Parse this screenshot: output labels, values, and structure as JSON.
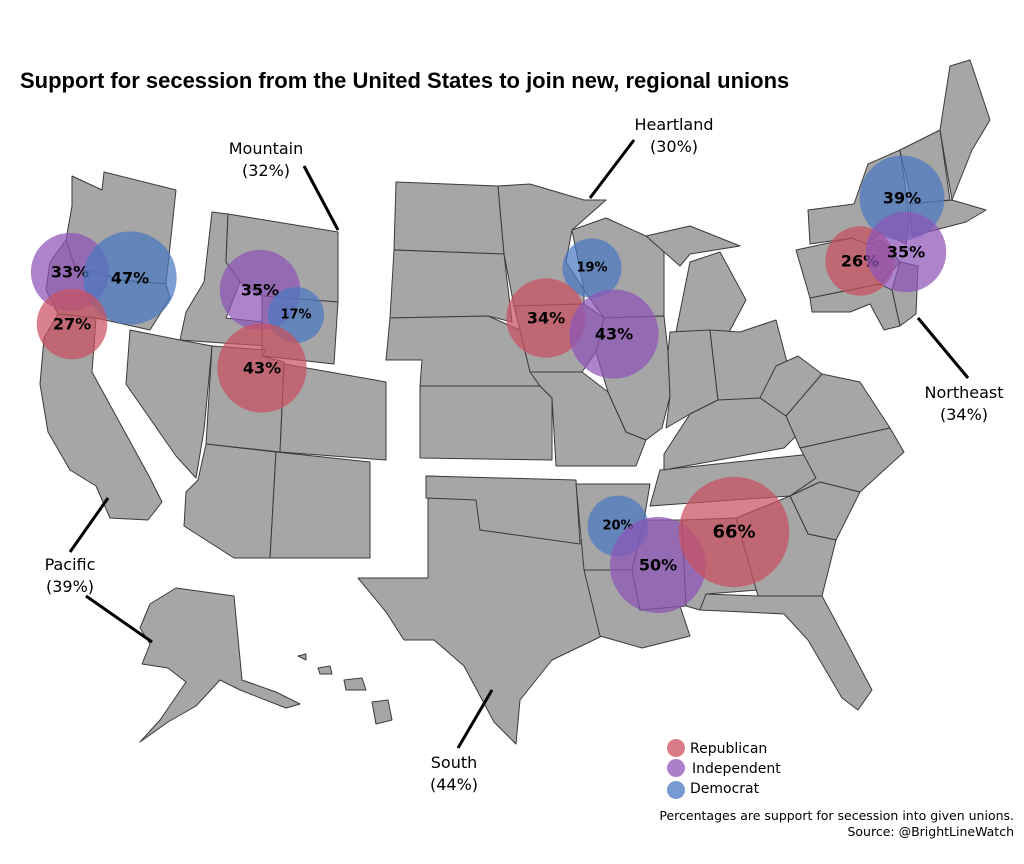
{
  "title": "Support for secession from the United States to join new, regional unions",
  "regions": [
    {
      "key": "pacific",
      "name": "Pacific",
      "overall": "(39%)"
    },
    {
      "key": "mountain",
      "name": "Mountain",
      "overall": "(32%)"
    },
    {
      "key": "heartland",
      "name": "Heartland",
      "overall": "(30%)"
    },
    {
      "key": "northeast",
      "name": "Northeast",
      "overall": "(34%)"
    },
    {
      "key": "south",
      "name": "South",
      "overall": "(44%)"
    }
  ],
  "parties": {
    "republican": {
      "label": "Republican",
      "color": "#c9505f"
    },
    "independent": {
      "label": "Independent",
      "color": "#8e55b8"
    },
    "democrat": {
      "label": "Democrat",
      "color": "#4a78c0"
    }
  },
  "support": [
    {
      "region": "pacific",
      "party": "independent",
      "value": 33,
      "text": "33%"
    },
    {
      "region": "pacific",
      "party": "democrat",
      "value": 47,
      "text": "47%"
    },
    {
      "region": "pacific",
      "party": "republican",
      "value": 27,
      "text": "27%"
    },
    {
      "region": "mountain",
      "party": "independent",
      "value": 35,
      "text": "35%"
    },
    {
      "region": "mountain",
      "party": "democrat",
      "value": 17,
      "text": "17%"
    },
    {
      "region": "mountain",
      "party": "republican",
      "value": 43,
      "text": "43%"
    },
    {
      "region": "heartland",
      "party": "democrat",
      "value": 19,
      "text": "19%"
    },
    {
      "region": "heartland",
      "party": "republican",
      "value": 34,
      "text": "34%"
    },
    {
      "region": "heartland",
      "party": "independent",
      "value": 43,
      "text": "43%"
    },
    {
      "region": "northeast",
      "party": "democrat",
      "value": 39,
      "text": "39%"
    },
    {
      "region": "northeast",
      "party": "republican",
      "value": 26,
      "text": "26%"
    },
    {
      "region": "northeast",
      "party": "independent",
      "value": 35,
      "text": "35%"
    },
    {
      "region": "south",
      "party": "democrat",
      "value": 20,
      "text": "20%"
    },
    {
      "region": "south",
      "party": "independent",
      "value": 50,
      "text": "50%"
    },
    {
      "region": "south",
      "party": "republican",
      "value": 66,
      "text": "66%"
    }
  ],
  "note": "Percentages are support for secession into given unions.",
  "source": "Source: @BrightLineWatch"
}
